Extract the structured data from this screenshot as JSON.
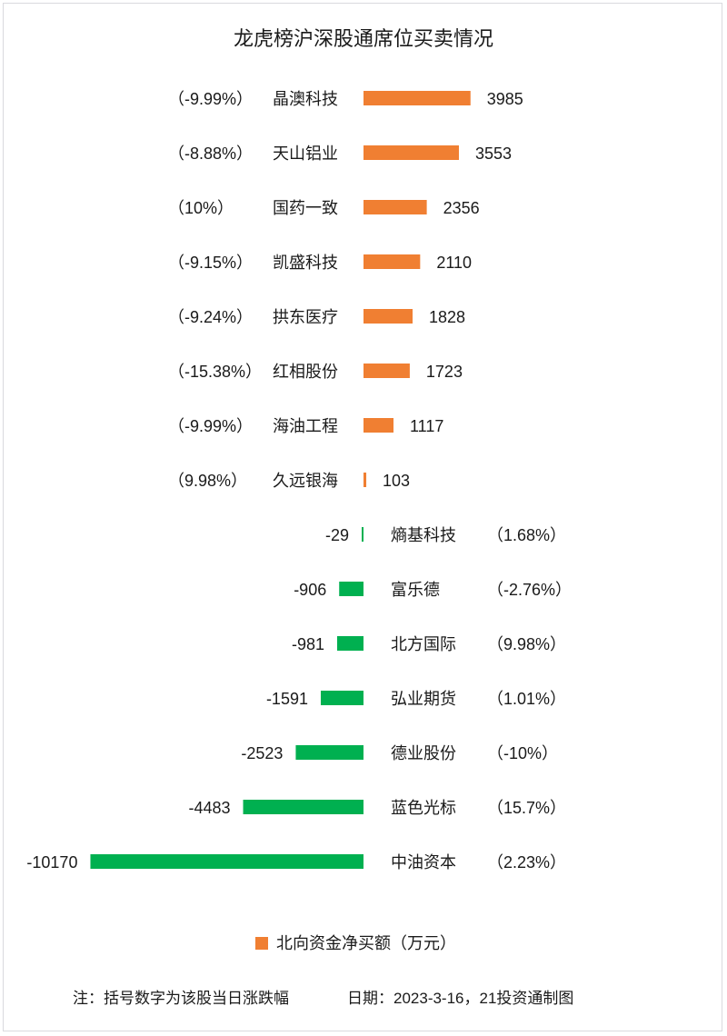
{
  "chart_data": {
    "type": "bar",
    "orientation": "horizontal",
    "title": "龙虎榜沪深股通席位买卖情况",
    "series": [
      {
        "name": "北向资金净买额（万元）",
        "color_positive": "#f07f32",
        "color_negative": "#00b050"
      }
    ],
    "rows": [
      {
        "name": "晶澳科技",
        "value": 3985,
        "value_label": "3985",
        "change": "（-9.99%）"
      },
      {
        "name": "天山铝业",
        "value": 3553,
        "value_label": "3553",
        "change": "（-8.88%）"
      },
      {
        "name": "国药一致",
        "value": 2356,
        "value_label": "2356",
        "change": "（10%）"
      },
      {
        "name": "凯盛科技",
        "value": 2110,
        "value_label": "2110",
        "change": "（-9.15%）"
      },
      {
        "name": "拱东医疗",
        "value": 1828,
        "value_label": "1828",
        "change": "（-9.24%）"
      },
      {
        "name": "红相股份",
        "value": 1723,
        "value_label": "1723",
        "change": "（-15.38%）"
      },
      {
        "name": "海油工程",
        "value": 1117,
        "value_label": "1117",
        "change": "（-9.99%）"
      },
      {
        "name": "久远银海",
        "value": 103,
        "value_label": "103",
        "change": "（9.98%）"
      },
      {
        "name": "熵基科技",
        "value": -29,
        "value_label": "-29",
        "change": "（1.68%）"
      },
      {
        "name": "富乐德",
        "value": -906,
        "value_label": "-906",
        "change": "（-2.76%）"
      },
      {
        "name": "北方国际",
        "value": -981,
        "value_label": "-981",
        "change": "（9.98%）"
      },
      {
        "name": "弘业期货",
        "value": -1591,
        "value_label": "-1591",
        "change": "（1.01%）"
      },
      {
        "name": "德业股份",
        "value": -2523,
        "value_label": "-2523",
        "change": "（-10%）"
      },
      {
        "name": "蓝色光标",
        "value": -4483,
        "value_label": "-4483",
        "change": "（15.7%）"
      },
      {
        "name": "中油资本",
        "value": -10170,
        "value_label": "-10170",
        "change": "（2.23%）"
      }
    ],
    "legend": {
      "label": "北向资金净买额（万元）",
      "color": "#f07f32",
      "placement": "bottom"
    },
    "grid": false
  },
  "footer": {
    "note": "注：括号数字为该股当日涨跌幅",
    "date": "日期：2023-3-16，21投资通制图"
  }
}
